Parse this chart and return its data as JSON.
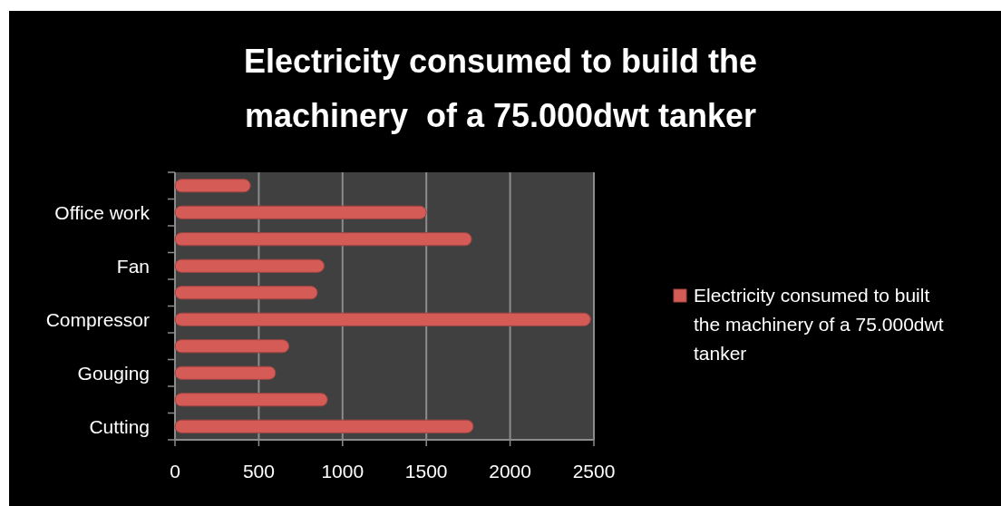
{
  "chart_data": {
    "type": "bar",
    "orientation": "horizontal",
    "title": "Electricity consumed to build the machinery  of a 75.000dwt tanker",
    "categories": [
      null,
      "Office work",
      null,
      "Fan",
      null,
      "Compressor",
      null,
      "Gouging",
      null,
      "Cutting"
    ],
    "series": [
      {
        "name": "Electricity consumed to built the machinery of a 75.000dwt tanker",
        "color": "#d55b57",
        "values": [
          450,
          1500,
          1770,
          890,
          850,
          2480,
          680,
          600,
          910,
          1780
        ]
      }
    ],
    "xlim": [
      0,
      2500
    ],
    "xticks": [
      0,
      500,
      1000,
      1500,
      2000,
      2500
    ],
    "grid": "x",
    "legend": "right"
  }
}
